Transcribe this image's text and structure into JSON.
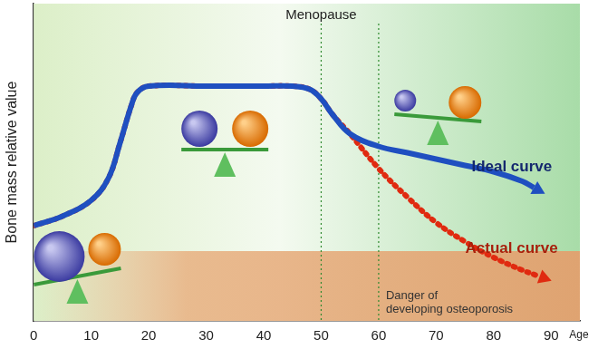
{
  "chart_data": {
    "type": "line",
    "y_label": "Bone mass relative value",
    "x_label": "Age",
    "xlim": [
      0,
      95
    ],
    "xticks": [
      0,
      10,
      20,
      30,
      40,
      50,
      60,
      70,
      80,
      90
    ],
    "ylim": [
      0,
      100
    ],
    "tick_labels": "x",
    "grid": false,
    "series": [
      {
        "name": "Ideal curve",
        "color": "#1f4fc0",
        "line_style": "solid",
        "x": [
          0,
          5,
          10,
          13,
          15,
          17,
          18,
          20,
          30,
          40,
          45,
          48,
          50,
          52,
          55,
          60,
          65,
          70,
          75,
          80,
          85,
          87
        ],
        "values": [
          30,
          33,
          38,
          45,
          56,
          68,
          72,
          74,
          74,
          74,
          74,
          73,
          70,
          65,
          59,
          55,
          53,
          51,
          49,
          47,
          44,
          42
        ]
      },
      {
        "name": "Actual curve",
        "color": "#e02a10",
        "line_style": "dotted",
        "x": [
          0,
          5,
          10,
          13,
          15,
          17,
          18,
          20,
          30,
          40,
          45,
          48,
          50,
          52,
          55,
          60,
          65,
          70,
          75,
          80,
          85,
          88
        ],
        "values": [
          30,
          33,
          38,
          45,
          56,
          68,
          72,
          74,
          74,
          74,
          74,
          73,
          70,
          65,
          59,
          48,
          39,
          31,
          25,
          20,
          16,
          14
        ]
      }
    ],
    "vlines": [
      {
        "x": 50,
        "label": "Menopause"
      },
      {
        "x": 60
      }
    ],
    "danger_zone": {
      "y_max": 22,
      "text": [
        "Danger of",
        "developing osteoporosis"
      ]
    }
  }
}
